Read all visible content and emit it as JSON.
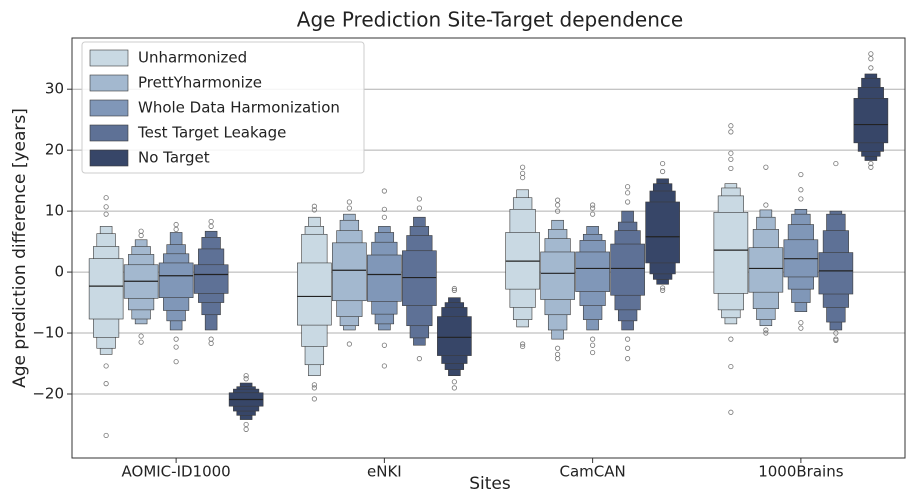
{
  "chart_data": {
    "type": "boxen",
    "title": "Age Prediction Site-Target dependence",
    "xlabel": "Sites",
    "ylabel": "Age prediction difference [years]",
    "categories": [
      "AOMIC-ID1000",
      "eNKI",
      "CamCAN",
      "1000Brains"
    ],
    "ylim": [
      -30.5,
      38.4
    ],
    "yticks": [
      {
        "value": -20,
        "label": "−20"
      },
      {
        "value": -10,
        "label": "−10"
      },
      0,
      10,
      20,
      30
    ],
    "grid": true,
    "legend": "upper left",
    "series": [
      {
        "name": "Unharmonized",
        "color": "#c9d9e3",
        "data": [
          {
            "median": -2.3,
            "boxes": [
              [
                -7.7,
                2.2
              ],
              [
                -10.7,
                4.2
              ],
              [
                -12.5,
                6.3
              ],
              [
                -13.5,
                7.5
              ]
            ],
            "outliers": [
              -18.3,
              -15.4,
              -26.8,
              9.5,
              10.7,
              12.2
            ]
          },
          {
            "median": -4.0,
            "boxes": [
              [
                -8.7,
                1.5
              ],
              [
                -12.2,
                6.2
              ],
              [
                -15.2,
                7.5
              ],
              [
                -17,
                9
              ]
            ],
            "outliers": [
              -18.5,
              -19,
              -20.8,
              10.2,
              10.8
            ]
          },
          {
            "median": 1.8,
            "boxes": [
              [
                -2.8,
                6.5
              ],
              [
                -5.8,
                10.3
              ],
              [
                -7.8,
                12.2
              ],
              [
                -9,
                13.5
              ]
            ],
            "outliers": [
              -11.8,
              -12.2,
              15.5,
              16.2,
              17.2
            ]
          },
          {
            "median": 3.6,
            "boxes": [
              [
                -3.5,
                9.8
              ],
              [
                -6.2,
                12.5
              ],
              [
                -7.5,
                13.8
              ],
              [
                -8.5,
                14.5
              ]
            ],
            "outliers": [
              -11,
              -15.5,
              -23,
              17,
              18.5,
              19.5,
              23,
              24
            ]
          }
        ]
      },
      {
        "name": "PrettYharmonize",
        "color": "#a3b8cf",
        "data": [
          {
            "median": -1.5,
            "boxes": [
              [
                -4.3,
                1.2
              ],
              [
                -6.2,
                2.9
              ],
              [
                -7.7,
                4.2
              ],
              [
                -8.5,
                5.3
              ]
            ],
            "outliers": [
              -10.5,
              -11.5,
              6,
              6.7
            ]
          },
          {
            "median": 0.3,
            "boxes": [
              [
                -4.7,
                4.8
              ],
              [
                -7.3,
                6.8
              ],
              [
                -8.8,
                8.5
              ],
              [
                -9.5,
                9.5
              ]
            ],
            "outliers": [
              -11.8,
              10.5,
              11.5
            ]
          },
          {
            "median": -0.2,
            "boxes": [
              [
                -4.5,
                3.3
              ],
              [
                -7,
                5.5
              ],
              [
                -9.5,
                7
              ],
              [
                -11,
                8.5
              ]
            ],
            "outliers": [
              -12.5,
              -13.5,
              -14.2,
              10,
              11,
              11.8
            ]
          },
          {
            "median": 0.6,
            "boxes": [
              [
                -3.3,
                4
              ],
              [
                -6,
                7
              ],
              [
                -7.8,
                9
              ],
              [
                -8.8,
                10.2
              ]
            ],
            "outliers": [
              -10,
              -9.5,
              11,
              17.2
            ]
          }
        ]
      },
      {
        "name": "Whole Data Harmonization",
        "color": "#8097b8",
        "data": [
          {
            "median": -0.6,
            "boxes": [
              [
                -4.2,
                1.5
              ],
              [
                -6.3,
                3
              ],
              [
                -8,
                4.5
              ],
              [
                -9.5,
                6.5
              ]
            ],
            "outliers": [
              -11,
              -12.3,
              -14.7,
              7,
              7.8
            ]
          },
          {
            "median": -0.4,
            "boxes": [
              [
                -4.8,
                2.8
              ],
              [
                -6.9,
                4.9
              ],
              [
                -8.5,
                6.5
              ],
              [
                -9.5,
                7.5
              ]
            ],
            "outliers": [
              -12,
              -15.4,
              9,
              10.3,
              13.3
            ]
          },
          {
            "median": 0.6,
            "boxes": [
              [
                -3.2,
                3.3
              ],
              [
                -5.5,
                5.2
              ],
              [
                -7.8,
                6.2
              ],
              [
                -9.5,
                7.5
              ]
            ],
            "outliers": [
              -11,
              -12,
              -13.2,
              9.5,
              10.5,
              11
            ]
          },
          {
            "median": 2.2,
            "boxes": [
              [
                -0.8,
                5.3
              ],
              [
                -2.8,
                7.8
              ],
              [
                -5,
                9.5
              ],
              [
                -6.5,
                10.3
              ]
            ],
            "outliers": [
              -8.3,
              -9.2,
              12,
              13.5,
              16
            ]
          }
        ]
      },
      {
        "name": "Test Target Leakage",
        "color": "#5e7196",
        "data": [
          {
            "median": -0.4,
            "boxes": [
              [
                -3.5,
                1.2
              ],
              [
                -5,
                3.8
              ],
              [
                -7,
                5.7
              ],
              [
                -9.5,
                6.7
              ]
            ],
            "outliers": [
              -11,
              -11.7,
              7.5,
              8.3
            ]
          },
          {
            "median": -0.9,
            "boxes": [
              [
                -5.5,
                3.5
              ],
              [
                -8.8,
                6
              ],
              [
                -10.8,
                7.5
              ],
              [
                -12,
                9
              ]
            ],
            "outliers": [
              -14.2,
              10.5,
              12
            ]
          },
          {
            "median": 0.6,
            "boxes": [
              [
                -3.8,
                4.6
              ],
              [
                -6.2,
                6.8
              ],
              [
                -8,
                8.2
              ],
              [
                -9.5,
                10
              ]
            ],
            "outliers": [
              -11,
              -12.5,
              -14.2,
              11.5,
              13,
              14
            ]
          },
          {
            "median": 0.2,
            "boxes": [
              [
                -3.6,
                3.2
              ],
              [
                -5.8,
                6.8
              ],
              [
                -8.2,
                9.5
              ],
              [
                -9.5,
                10
              ]
            ],
            "outliers": [
              -10,
              -11,
              -11.2,
              17.8
            ]
          }
        ]
      },
      {
        "name": "No Target",
        "color": "#374668",
        "data": [
          {
            "median": -20.9,
            "boxes": [
              [
                -22,
                -19.8
              ],
              [
                -22.8,
                -19.2
              ],
              [
                -23.5,
                -18.8
              ],
              [
                -24.2,
                -18.2
              ]
            ],
            "outliers": [
              -25,
              -25.8,
              -17.5,
              -17
            ]
          },
          {
            "median": -10.7,
            "boxes": [
              [
                -13.7,
                -7.3
              ],
              [
                -15,
                -5.8
              ],
              [
                -16,
                -5
              ],
              [
                -17,
                -4.2
              ]
            ],
            "outliers": [
              -18,
              -19,
              -3,
              -2.7
            ]
          },
          {
            "median": 5.8,
            "boxes": [
              [
                1.5,
                11.5
              ],
              [
                -0.3,
                13.3
              ],
              [
                -1.2,
                14.5
              ],
              [
                -2,
                15.3
              ]
            ],
            "outliers": [
              -3,
              -2.6,
              16.5,
              17.8
            ]
          },
          {
            "median": 24.2,
            "boxes": [
              [
                21.2,
                28.5
              ],
              [
                19.8,
                30.3
              ],
              [
                19,
                31.8
              ],
              [
                18.3,
                32.5
              ]
            ],
            "outliers": [
              17.2,
              17.8,
              33.5,
              35,
              35.8
            ]
          }
        ]
      }
    ]
  }
}
